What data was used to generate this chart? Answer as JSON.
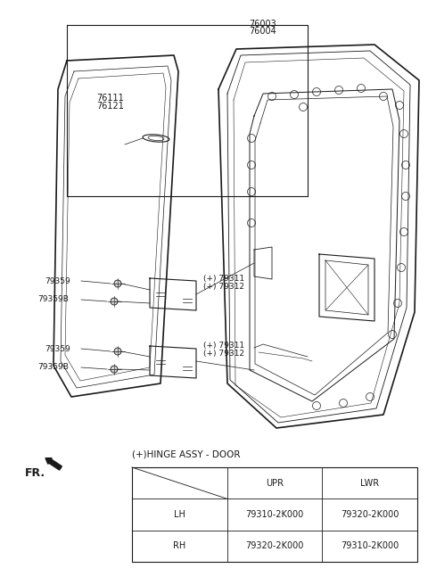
{
  "bg_color": "#ffffff",
  "line_color": "#1a1a1a",
  "text_color": "#1a1a1a",
  "font_size": 6.5,
  "label_76003": "76003",
  "label_76004": "76004",
  "label_76111": "76111",
  "label_76121": "76121",
  "label_79311": "(+) 79311",
  "label_79312": "(+) 79312",
  "label_79359": "79359",
  "label_79359B": "79359B",
  "label_fr": "FR.",
  "label_hinge": "(+)HINGE ASSY - DOOR",
  "table": {
    "col_labels": [
      "UPR",
      "LWR"
    ],
    "row_labels": [
      "LH",
      "RH"
    ],
    "data": [
      [
        "79310-2K000",
        "79320-2K000"
      ],
      [
        "79320-2K000",
        "79310-2K000"
      ]
    ]
  }
}
